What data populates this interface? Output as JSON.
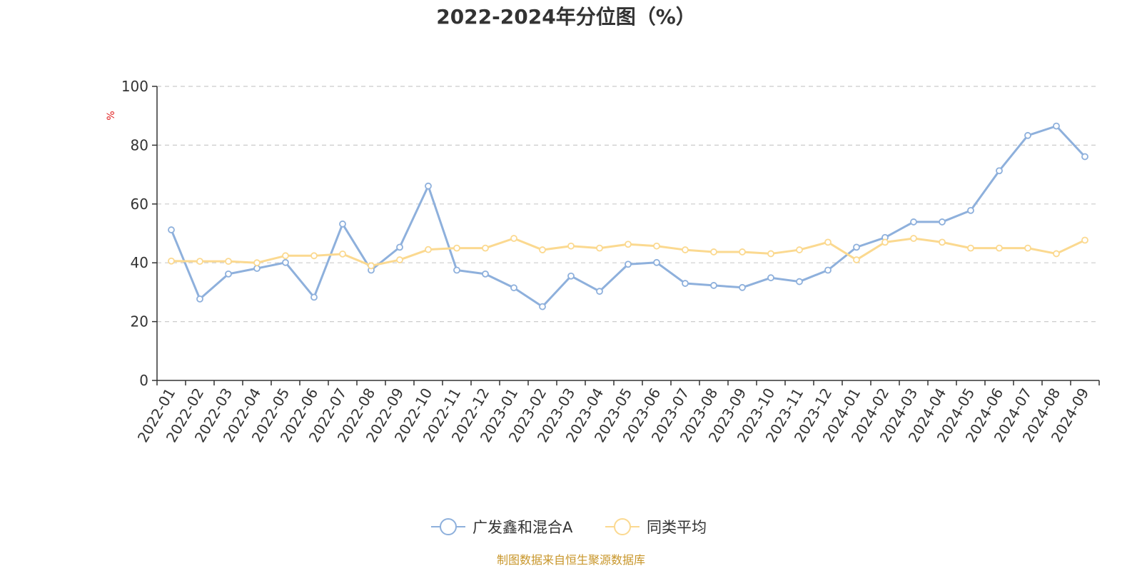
{
  "chart_data": {
    "type": "line",
    "title": "2022-2024年分位图（%）",
    "ylabel": "%",
    "xlabel": "",
    "ylim": [
      0,
      100
    ],
    "yticks": [
      0,
      20,
      40,
      60,
      80,
      100
    ],
    "grid": "horizontal dashed",
    "legend_position": "bottom-center",
    "categories": [
      "2022-01",
      "2022-02",
      "2022-03",
      "2022-04",
      "2022-05",
      "2022-06",
      "2022-07",
      "2022-08",
      "2022-09",
      "2022-10",
      "2022-11",
      "2022-12",
      "2023-01",
      "2023-02",
      "2023-03",
      "2023-04",
      "2023-05",
      "2023-06",
      "2023-07",
      "2023-08",
      "2023-09",
      "2023-10",
      "2023-11",
      "2023-12",
      "2024-01",
      "2024-02",
      "2024-03",
      "2024-04",
      "2024-05",
      "2024-06",
      "2024-07",
      "2024-08",
      "2024-09"
    ],
    "series": [
      {
        "name": "广发鑫和混合A",
        "color": "#8eb0dc",
        "values": [
          51.2,
          27.7,
          36.2,
          38.1,
          40.1,
          28.3,
          53.2,
          37.5,
          45.3,
          66.1,
          37.5,
          36.2,
          31.5,
          25.1,
          35.5,
          30.3,
          39.5,
          40.1,
          33.0,
          32.3,
          31.6,
          34.9,
          33.6,
          37.5,
          45.3,
          48.6,
          53.9,
          53.9,
          57.8,
          71.3,
          83.3,
          86.5,
          76.1
        ]
      },
      {
        "name": "同类平均",
        "color": "#fbd990",
        "values": [
          40.6,
          40.5,
          40.5,
          40.0,
          42.4,
          42.4,
          43.0,
          39.0,
          41.0,
          44.5,
          45.0,
          45.0,
          48.3,
          44.4,
          45.7,
          45.0,
          46.3,
          45.7,
          44.4,
          43.7,
          43.7,
          43.1,
          44.4,
          47.0,
          41.0,
          47.0,
          48.3,
          47.0,
          45.0,
          45.0,
          45.0,
          43.1,
          47.7
        ]
      }
    ]
  },
  "source_note": "制图数据来自恒生聚源数据库",
  "colors": {
    "axis": "#333333",
    "grid": "#cccccc",
    "unit_label": "#e02020",
    "source_note": "#c8962a"
  }
}
